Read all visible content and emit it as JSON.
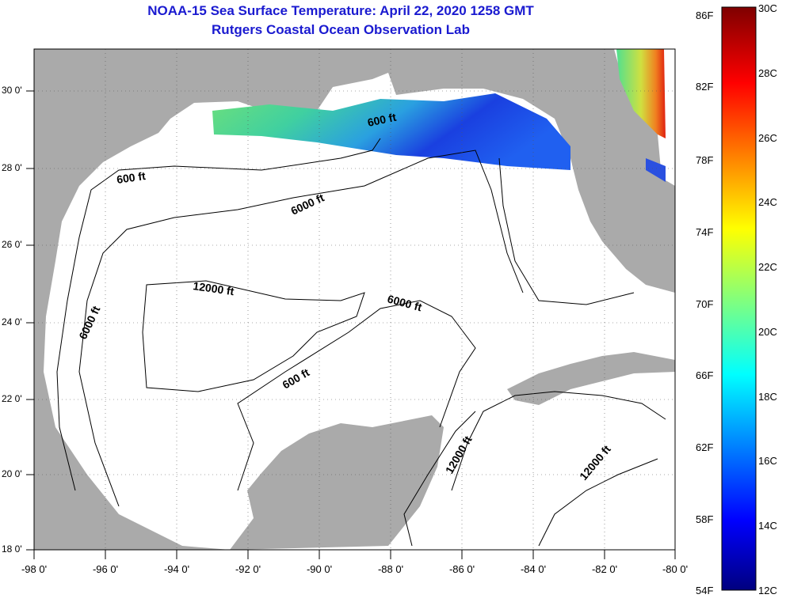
{
  "title": {
    "line1": "NOAA-15 Sea Surface Temperature:  April 22, 2020 1258 GMT",
    "line2": "Rutgers Coastal Ocean Observation Lab"
  },
  "axes": {
    "lat_labels": [
      "30 0'",
      "28 0'",
      "26 0'",
      "24 0'",
      "22 0'",
      "20 0'",
      "18 0'"
    ],
    "lon_labels": [
      "-98 0'",
      "-96 0'",
      "-94 0'",
      "-92 0'",
      "-90 0'",
      "-88 0'",
      "-86 0'",
      "-84 0'",
      "-82 0'",
      "-80 0'"
    ]
  },
  "colorbar": {
    "fahrenheit": [
      "86F",
      "82F",
      "78F",
      "74F",
      "70F",
      "66F",
      "62F",
      "58F",
      "54F"
    ],
    "celsius": [
      "30C",
      "28C",
      "26C",
      "24C",
      "22C",
      "20C",
      "18C",
      "16C",
      "14C",
      "12C"
    ]
  },
  "contours": {
    "c600a": "600 ft",
    "c600b": "600 ft",
    "c600c": "600 ft",
    "c6000a": "6000 ft",
    "c6000b": "6000 ft",
    "c6000c": "6000 ft",
    "c12000a": "12000 ft",
    "c12000b": "12000 ft",
    "c12000c": "12000 ft"
  },
  "colors": {
    "land": "#aaaaaa",
    "water": "#ffffff",
    "title": "#1a1ad0"
  }
}
